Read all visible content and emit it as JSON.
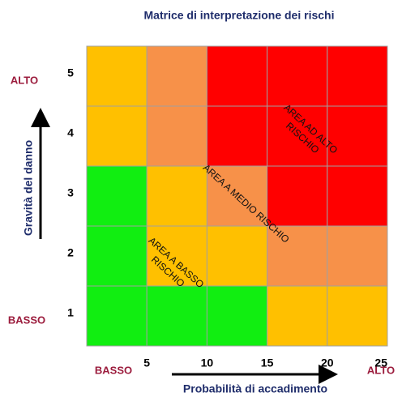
{
  "title": "Matrice di interpretazione dei rischi",
  "y_axis": {
    "label": "Gravità del danno",
    "high": "ALTO",
    "low": "BASSO",
    "levels": [
      5,
      4,
      3,
      2,
      1
    ]
  },
  "x_axis": {
    "label": "Probabilità di accadimento",
    "low": "BASSO",
    "high": "ALTO",
    "ticks": [
      5,
      10,
      15,
      20,
      25
    ]
  },
  "grid": {
    "rows": [
      [
        "#ffc000",
        "#f79149",
        "#ff0000",
        "#ff0000",
        "#ff0000"
      ],
      [
        "#ffc000",
        "#f79149",
        "#ff0000",
        "#ff0000",
        "#ff0000"
      ],
      [
        "#11ee11",
        "#ffc000",
        "#f79149",
        "#ff0000",
        "#ff0000"
      ],
      [
        "#11ee11",
        "#ffc000",
        "#ffc000",
        "#f79149",
        "#f79149"
      ],
      [
        "#11ee11",
        "#11ee11",
        "#11ee11",
        "#ffc000",
        "#ffc000"
      ]
    ]
  },
  "areas": [
    {
      "lines": [
        "AREA AD ALTO",
        "RISCHIO"
      ]
    },
    {
      "lines": [
        "AREA A MEDIO RISCHIO"
      ]
    },
    {
      "lines": [
        "AREA A BASSO",
        "RISCHIO"
      ]
    }
  ]
}
